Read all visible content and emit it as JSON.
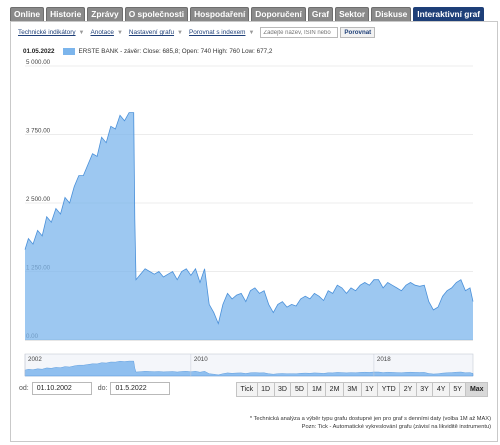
{
  "tabs": [
    {
      "label": "Online",
      "active": false
    },
    {
      "label": "Historie",
      "active": false
    },
    {
      "label": "Zprávy",
      "active": false
    },
    {
      "label": "O společnosti",
      "active": false
    },
    {
      "label": "Hospodaření",
      "active": false
    },
    {
      "label": "Doporučení",
      "active": false
    },
    {
      "label": "Graf",
      "active": false
    },
    {
      "label": "Sektor",
      "active": false
    },
    {
      "label": "Diskuse",
      "active": false
    },
    {
      "label": "Interaktivní graf",
      "active": true
    }
  ],
  "toolbar": {
    "items": [
      "Technické indikátory",
      "Anotace",
      "Nastavení grafu",
      "Porovnat s indexem"
    ],
    "compare_placeholder": "Zadejte název, ISIN nebo",
    "compare_button": "Porovnat"
  },
  "legend": {
    "date": "01.05.2022",
    "text": "ERSTE BANK - závěr: Close: 685,8; Open: 740 High: 760 Low: 677,2",
    "color": "#7cb5ec"
  },
  "range": {
    "from_label": "od:",
    "from_value": "01.10.2002",
    "to_label": "do:",
    "to_value": "01.5.2022"
  },
  "zoom_buttons": [
    "Tick",
    "1D",
    "3D",
    "5D",
    "1M",
    "2M",
    "3M",
    "1Y",
    "YTD",
    "2Y",
    "3Y",
    "4Y",
    "5Y",
    "Max"
  ],
  "zoom_selected": "Max",
  "notes": [
    "* Technická analýza a výběr typu grafu dostupné jen pro graf s denními daty (volba 1M až MAX)",
    "Pozn: Tick - Automatické vykreslování grafu (závisí na likviditě instrumentu)"
  ],
  "navigator_labels": [
    "2002",
    "2010",
    "2018"
  ],
  "chart_data": {
    "type": "area",
    "series_name": "ERSTE BANK",
    "color": "#7cb5ec",
    "y_ticks": [
      "5 000.00",
      "3 750.00",
      "2 500.00",
      "1 250.00",
      "0.00"
    ],
    "ylim": [
      0,
      5000
    ],
    "xlim": [
      2002.75,
      2022.33
    ],
    "grid": true,
    "x": [
      2002.75,
      2002.9,
      2003.1,
      2003.3,
      2003.5,
      2003.7,
      2003.9,
      2004.1,
      2004.3,
      2004.5,
      2004.7,
      2004.9,
      2005.1,
      2005.3,
      2005.5,
      2005.7,
      2005.9,
      2006.1,
      2006.3,
      2006.5,
      2006.7,
      2006.9,
      2007.1,
      2007.3,
      2007.5,
      2007.55,
      2007.6,
      2007.8,
      2008.0,
      2008.2,
      2008.4,
      2008.6,
      2008.8,
      2009.0,
      2009.2,
      2009.4,
      2009.6,
      2009.8,
      2010.0,
      2010.2,
      2010.4,
      2010.6,
      2010.8,
      2011.0,
      2011.2,
      2011.4,
      2011.6,
      2011.8,
      2012.0,
      2012.2,
      2012.4,
      2012.6,
      2012.8,
      2013.0,
      2013.2,
      2013.4,
      2013.6,
      2013.8,
      2014.0,
      2014.2,
      2014.4,
      2014.6,
      2014.8,
      2015.0,
      2015.2,
      2015.4,
      2015.6,
      2015.8,
      2016.0,
      2016.2,
      2016.4,
      2016.6,
      2016.8,
      2017.0,
      2017.2,
      2017.4,
      2017.6,
      2017.8,
      2018.0,
      2018.2,
      2018.4,
      2018.6,
      2018.8,
      2019.0,
      2019.2,
      2019.4,
      2019.6,
      2019.8,
      2020.0,
      2020.2,
      2020.4,
      2020.6,
      2020.8,
      2021.0,
      2021.2,
      2021.4,
      2021.6,
      2021.8,
      2022.0,
      2022.2,
      2022.33
    ],
    "values": [
      1650,
      1850,
      1750,
      2000,
      1900,
      2250,
      2150,
      2400,
      2300,
      2600,
      2500,
      2800,
      3000,
      3000,
      3200,
      3400,
      3350,
      3700,
      3600,
      3900,
      3850,
      4100,
      4000,
      4150,
      4150,
      2200,
      1100,
      1200,
      1300,
      1250,
      1200,
      1250,
      1150,
      1200,
      1250,
      1100,
      1250,
      1300,
      1180,
      1300,
      1050,
      1300,
      650,
      500,
      300,
      650,
      850,
      750,
      820,
      850,
      700,
      900,
      950,
      850,
      900,
      650,
      500,
      650,
      700,
      600,
      650,
      620,
      750,
      800,
      750,
      850,
      800,
      720,
      900,
      850,
      1000,
      950,
      850,
      950,
      900,
      1000,
      1050,
      1000,
      1100,
      1100,
      950,
      1050,
      1000,
      950,
      900,
      1000,
      1050,
      1000,
      980,
      1000,
      700,
      550,
      600,
      800,
      900,
      950,
      1050,
      1100,
      900,
      950,
      700
    ]
  }
}
